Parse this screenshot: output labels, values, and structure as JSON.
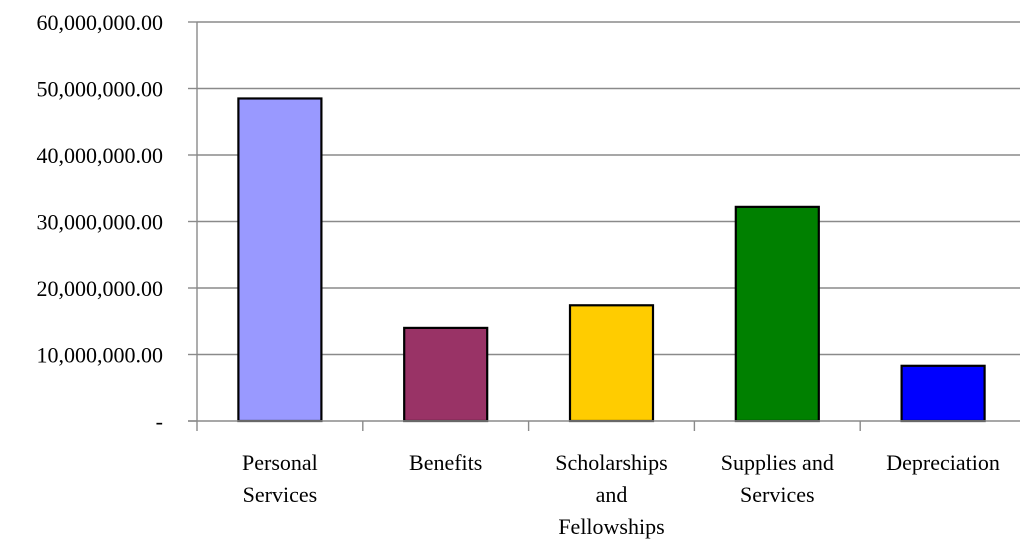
{
  "chart_data": {
    "type": "bar",
    "categories": [
      [
        "Personal",
        "Services"
      ],
      [
        "Benefits"
      ],
      [
        "Scholarships",
        "and",
        "Fellowships"
      ],
      [
        "Supplies and",
        "Services"
      ],
      [
        "Depreciation"
      ]
    ],
    "values": [
      48500000,
      14000000,
      17400000,
      32200000,
      8300000
    ],
    "colors": [
      "#9999ff",
      "#993366",
      "#ffcc00",
      "#008000",
      "#0000ff"
    ],
    "ylim": [
      0,
      60000000
    ],
    "yticks": [
      {
        "value": 0,
        "label": "-"
      },
      {
        "value": 10000000,
        "label": "10,000,000.00"
      },
      {
        "value": 20000000,
        "label": "20,000,000.00"
      },
      {
        "value": 30000000,
        "label": "30,000,000.00"
      },
      {
        "value": 40000000,
        "label": "40,000,000.00"
      },
      {
        "value": 50000000,
        "label": "50,000,000.00"
      },
      {
        "value": 60000000,
        "label": "60,000,000.00"
      }
    ],
    "grid": true,
    "legend": "none"
  }
}
